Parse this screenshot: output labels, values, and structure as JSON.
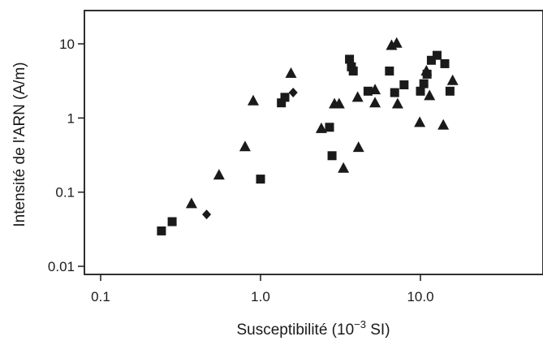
{
  "chart_data": {
    "type": "scatter",
    "x_scale": "log",
    "y_scale": "log",
    "xlim": [
      0.1,
      60
    ],
    "ylim": [
      0.008,
      20
    ],
    "grid": false,
    "legend": "none",
    "xlabel": "Susceptibilité (10-3 SI)",
    "xlabel_parts": {
      "before": "Susceptibilité (10",
      "sup": "−3",
      "after": " SI)"
    },
    "ylabel": "Intensité de l'ARN (A/m)",
    "x_ticks": [
      {
        "value": 0.1,
        "label": "0.1"
      },
      {
        "value": 1,
        "label": "1.0"
      },
      {
        "value": 10,
        "label": "10.0"
      }
    ],
    "y_ticks": [
      {
        "value": 0.01,
        "label": "0.01"
      },
      {
        "value": 0.1,
        "label": "0.1"
      },
      {
        "value": 1,
        "label": "1"
      },
      {
        "value": 10,
        "label": "10"
      }
    ],
    "series": [
      {
        "marker": "square",
        "color": "#1a1a1a",
        "points": [
          [
            0.24,
            0.03
          ],
          [
            0.28,
            0.04
          ],
          [
            1.0,
            0.15
          ],
          [
            1.35,
            1.6
          ],
          [
            1.42,
            1.9
          ],
          [
            2.7,
            0.75
          ],
          [
            2.8,
            0.31
          ],
          [
            3.6,
            6.2
          ],
          [
            3.7,
            4.9
          ],
          [
            3.8,
            4.3
          ],
          [
            4.7,
            2.3
          ],
          [
            6.4,
            4.3
          ],
          [
            6.9,
            2.2
          ],
          [
            7.9,
            2.8
          ],
          [
            10.0,
            2.3
          ],
          [
            10.5,
            2.9
          ],
          [
            11.0,
            3.9
          ],
          [
            11.7,
            6.0
          ],
          [
            12.7,
            7.0
          ],
          [
            14.2,
            5.4
          ],
          [
            15.3,
            2.3
          ]
        ]
      },
      {
        "marker": "triangle",
        "color": "#1a1a1a",
        "points": [
          [
            0.37,
            0.07
          ],
          [
            0.55,
            0.17
          ],
          [
            0.8,
            0.41
          ],
          [
            0.9,
            1.7
          ],
          [
            1.55,
            4.0
          ],
          [
            2.4,
            0.72
          ],
          [
            2.9,
            1.55
          ],
          [
            3.1,
            1.55
          ],
          [
            3.3,
            0.21
          ],
          [
            4.05,
            1.9
          ],
          [
            4.1,
            0.4
          ],
          [
            5.2,
            2.4
          ],
          [
            5.2,
            1.6
          ],
          [
            6.6,
            9.5
          ],
          [
            7.1,
            10.2
          ],
          [
            7.2,
            1.55
          ],
          [
            9.9,
            0.87
          ],
          [
            10.9,
            4.3
          ],
          [
            11.4,
            2.0
          ],
          [
            13.9,
            0.8
          ],
          [
            15.9,
            3.2
          ]
        ]
      },
      {
        "marker": "diamond",
        "color": "#1a1a1a",
        "points": [
          [
            0.46,
            0.05
          ],
          [
            1.6,
            2.2
          ]
        ]
      }
    ]
  }
}
